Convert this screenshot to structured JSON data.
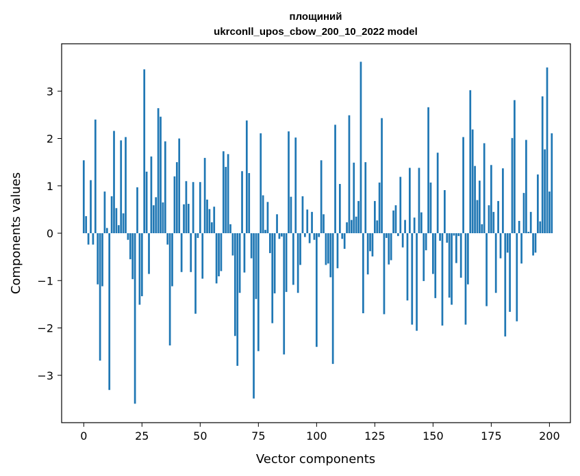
{
  "chart_data": {
    "type": "bar",
    "title": "площиний",
    "subtitle": "ukrconll_upos_cbow_200_10_2022 model",
    "xlabel": "Vector components",
    "ylabel": "Components values",
    "xlim": [
      -9.5,
      209
    ],
    "ylim": [
      -4.0,
      4.0
    ],
    "xticks": [
      0,
      25,
      50,
      75,
      100,
      125,
      150,
      175,
      200
    ],
    "yticks": [
      -3,
      -2,
      -1,
      0,
      1,
      2,
      3
    ],
    "xtick_labels": [
      "0",
      "25",
      "50",
      "75",
      "100",
      "125",
      "150",
      "175",
      "200"
    ],
    "ytick_labels": [
      "−3",
      "−2",
      "−1",
      "0",
      "1",
      "2",
      "3"
    ],
    "grid": false,
    "bar_color": "#1f77b4",
    "values": [
      1.54,
      0.36,
      -0.24,
      1.12,
      -0.24,
      2.4,
      -1.08,
      -2.69,
      -1.12,
      0.88,
      0.11,
      -3.31,
      0.78,
      2.16,
      0.53,
      0.17,
      1.96,
      0.42,
      2.03,
      -0.14,
      -0.55,
      -0.97,
      -3.6,
      0.97,
      -1.51,
      -1.33,
      3.46,
      1.3,
      -0.86,
      1.62,
      0.59,
      0.76,
      2.64,
      2.46,
      0.65,
      1.94,
      -0.24,
      -2.37,
      -1.12,
      1.2,
      1.5,
      2.0,
      -0.82,
      0.61,
      1.1,
      0.62,
      -0.82,
      1.08,
      -1.7,
      -0.1,
      1.08,
      -0.96,
      1.59,
      0.71,
      0.51,
      0.23,
      0.56,
      -1.06,
      -0.91,
      -0.8,
      1.73,
      1.4,
      1.67,
      0.19,
      -0.47,
      -2.17,
      -2.8,
      -1.26,
      1.31,
      -0.83,
      2.38,
      1.27,
      -0.53,
      -3.49,
      -1.39,
      -2.49,
      2.11,
      0.8,
      0.07,
      0.66,
      -0.42,
      -1.9,
      -1.27,
      0.4,
      -0.12,
      -0.07,
      -2.56,
      -1.24,
      2.15,
      0.77,
      -1.09,
      2.02,
      -1.26,
      -0.67,
      0.78,
      -0.08,
      0.5,
      -0.21,
      0.45,
      -0.14,
      -2.4,
      -0.08,
      1.54,
      0.4,
      -0.67,
      -0.64,
      -0.93,
      -2.76,
      2.29,
      -0.74,
      1.04,
      -0.12,
      -0.33,
      0.23,
      2.49,
      0.28,
      1.49,
      0.35,
      0.68,
      3.62,
      -1.69,
      1.5,
      -0.87,
      -0.38,
      -0.49,
      0.68,
      0.27,
      1.07,
      2.43,
      -1.71,
      -0.1,
      -0.66,
      -0.57,
      0.48,
      0.59,
      -0.06,
      1.19,
      -0.3,
      0.28,
      -1.42,
      1.38,
      -1.93,
      0.33,
      -2.06,
      1.38,
      0.44,
      -1.01,
      -0.36,
      2.66,
      1.07,
      -0.86,
      -1.37,
      1.7,
      -0.16,
      -1.95,
      0.91,
      -0.2,
      -1.36,
      -1.51,
      -0.05,
      -0.63,
      -0.06,
      -0.94,
      2.03,
      -1.93,
      -1.08,
      3.02,
      2.19,
      1.42,
      0.7,
      1.11,
      0.19,
      1.9,
      -1.54,
      0.59,
      1.44,
      0.45,
      -1.26,
      0.68,
      -0.53,
      1.37,
      -2.18,
      -0.41,
      -1.66,
      2.01,
      2.81,
      -1.86,
      0.26,
      -0.64,
      0.85,
      1.97,
      0.03,
      0.45,
      -0.47,
      -0.41,
      1.24,
      0.25,
      2.89,
      1.77,
      3.5,
      0.88,
      2.11
    ]
  }
}
